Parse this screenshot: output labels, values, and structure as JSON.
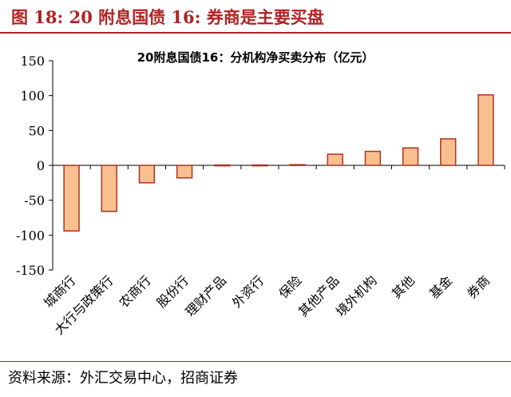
{
  "figure": {
    "title": "图 18:  20 附息国债 16:  券商是主要买盘",
    "source": "资料来源：外汇交易中心，招商证券"
  },
  "colors": {
    "title": "#b22222",
    "bar_fill": "#f9c08f",
    "bar_stroke": "#b03020",
    "axis": "#000000"
  },
  "chart_data": {
    "type": "bar",
    "title": "20附息国债16：分机构净买卖分布（亿元）",
    "xlabel": "",
    "ylabel": "",
    "categories": [
      "城商行",
      "大行与政策行",
      "农商行",
      "股份行",
      "理财产品",
      "外资行",
      "保险",
      "其他产品",
      "境外机构",
      "其他",
      "基金",
      "券商"
    ],
    "values": [
      -94,
      -66,
      -25,
      -18,
      0.5,
      0.5,
      1,
      16,
      20,
      25,
      38,
      101
    ],
    "ylim": [
      -150,
      150
    ],
    "yticks": [
      150,
      100,
      50,
      0,
      -50,
      -100,
      -150
    ],
    "ytick_labels": [
      "150",
      "100",
      "50",
      "0",
      "-50",
      "-100",
      "-150"
    ],
    "grid": false,
    "legend": "none"
  }
}
